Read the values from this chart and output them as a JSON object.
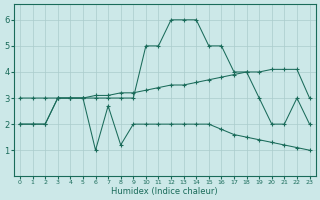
{
  "background_color": "#cce8e8",
  "grid_color": "#aacccc",
  "line_color": "#1a6b5a",
  "xlabel": "Humidex (Indice chaleur)",
  "xlim": [
    -0.5,
    23.5
  ],
  "ylim": [
    0,
    6.6
  ],
  "yticks": [
    1,
    2,
    3,
    4,
    5,
    6
  ],
  "xticks": [
    0,
    1,
    2,
    3,
    4,
    5,
    6,
    7,
    8,
    9,
    10,
    11,
    12,
    13,
    14,
    15,
    16,
    17,
    18,
    19,
    20,
    21,
    22,
    23
  ],
  "l1x": [
    0,
    1,
    2,
    3,
    4,
    5,
    6,
    7,
    8,
    9,
    10,
    11,
    12,
    13,
    14,
    15,
    16,
    17,
    18,
    19,
    20,
    21,
    22,
    23
  ],
  "l1y": [
    2.0,
    2.0,
    2.0,
    3.0,
    3.0,
    3.0,
    3.1,
    3.1,
    3.2,
    3.2,
    3.3,
    3.4,
    3.5,
    3.5,
    3.6,
    3.7,
    3.8,
    3.9,
    4.0,
    4.0,
    4.1,
    4.1,
    4.1,
    3.0
  ],
  "l2x": [
    0,
    1,
    2,
    3,
    4,
    5,
    6,
    7,
    8,
    9,
    10,
    11,
    12,
    13,
    14,
    15,
    16,
    17,
    18,
    19,
    20,
    21,
    22,
    23
  ],
  "l2y": [
    2.0,
    2.0,
    2.0,
    3.0,
    3.0,
    3.0,
    3.0,
    3.0,
    3.0,
    3.0,
    5.0,
    5.0,
    6.0,
    6.0,
    6.0,
    5.0,
    5.0,
    4.0,
    4.0,
    3.0,
    2.0,
    2.0,
    3.0,
    2.0
  ],
  "l3x": [
    0,
    1,
    2,
    3,
    4,
    5,
    6,
    7,
    8,
    9,
    10,
    11,
    12,
    13,
    14,
    15,
    16,
    17,
    18,
    19,
    20,
    21,
    22,
    23
  ],
  "l3y": [
    3.0,
    3.0,
    3.0,
    3.0,
    3.0,
    3.0,
    1.0,
    2.7,
    1.2,
    2.0,
    2.0,
    2.0,
    2.0,
    2.0,
    2.0,
    2.0,
    1.8,
    1.6,
    1.5,
    1.4,
    1.3,
    1.2,
    1.1,
    1.0
  ]
}
